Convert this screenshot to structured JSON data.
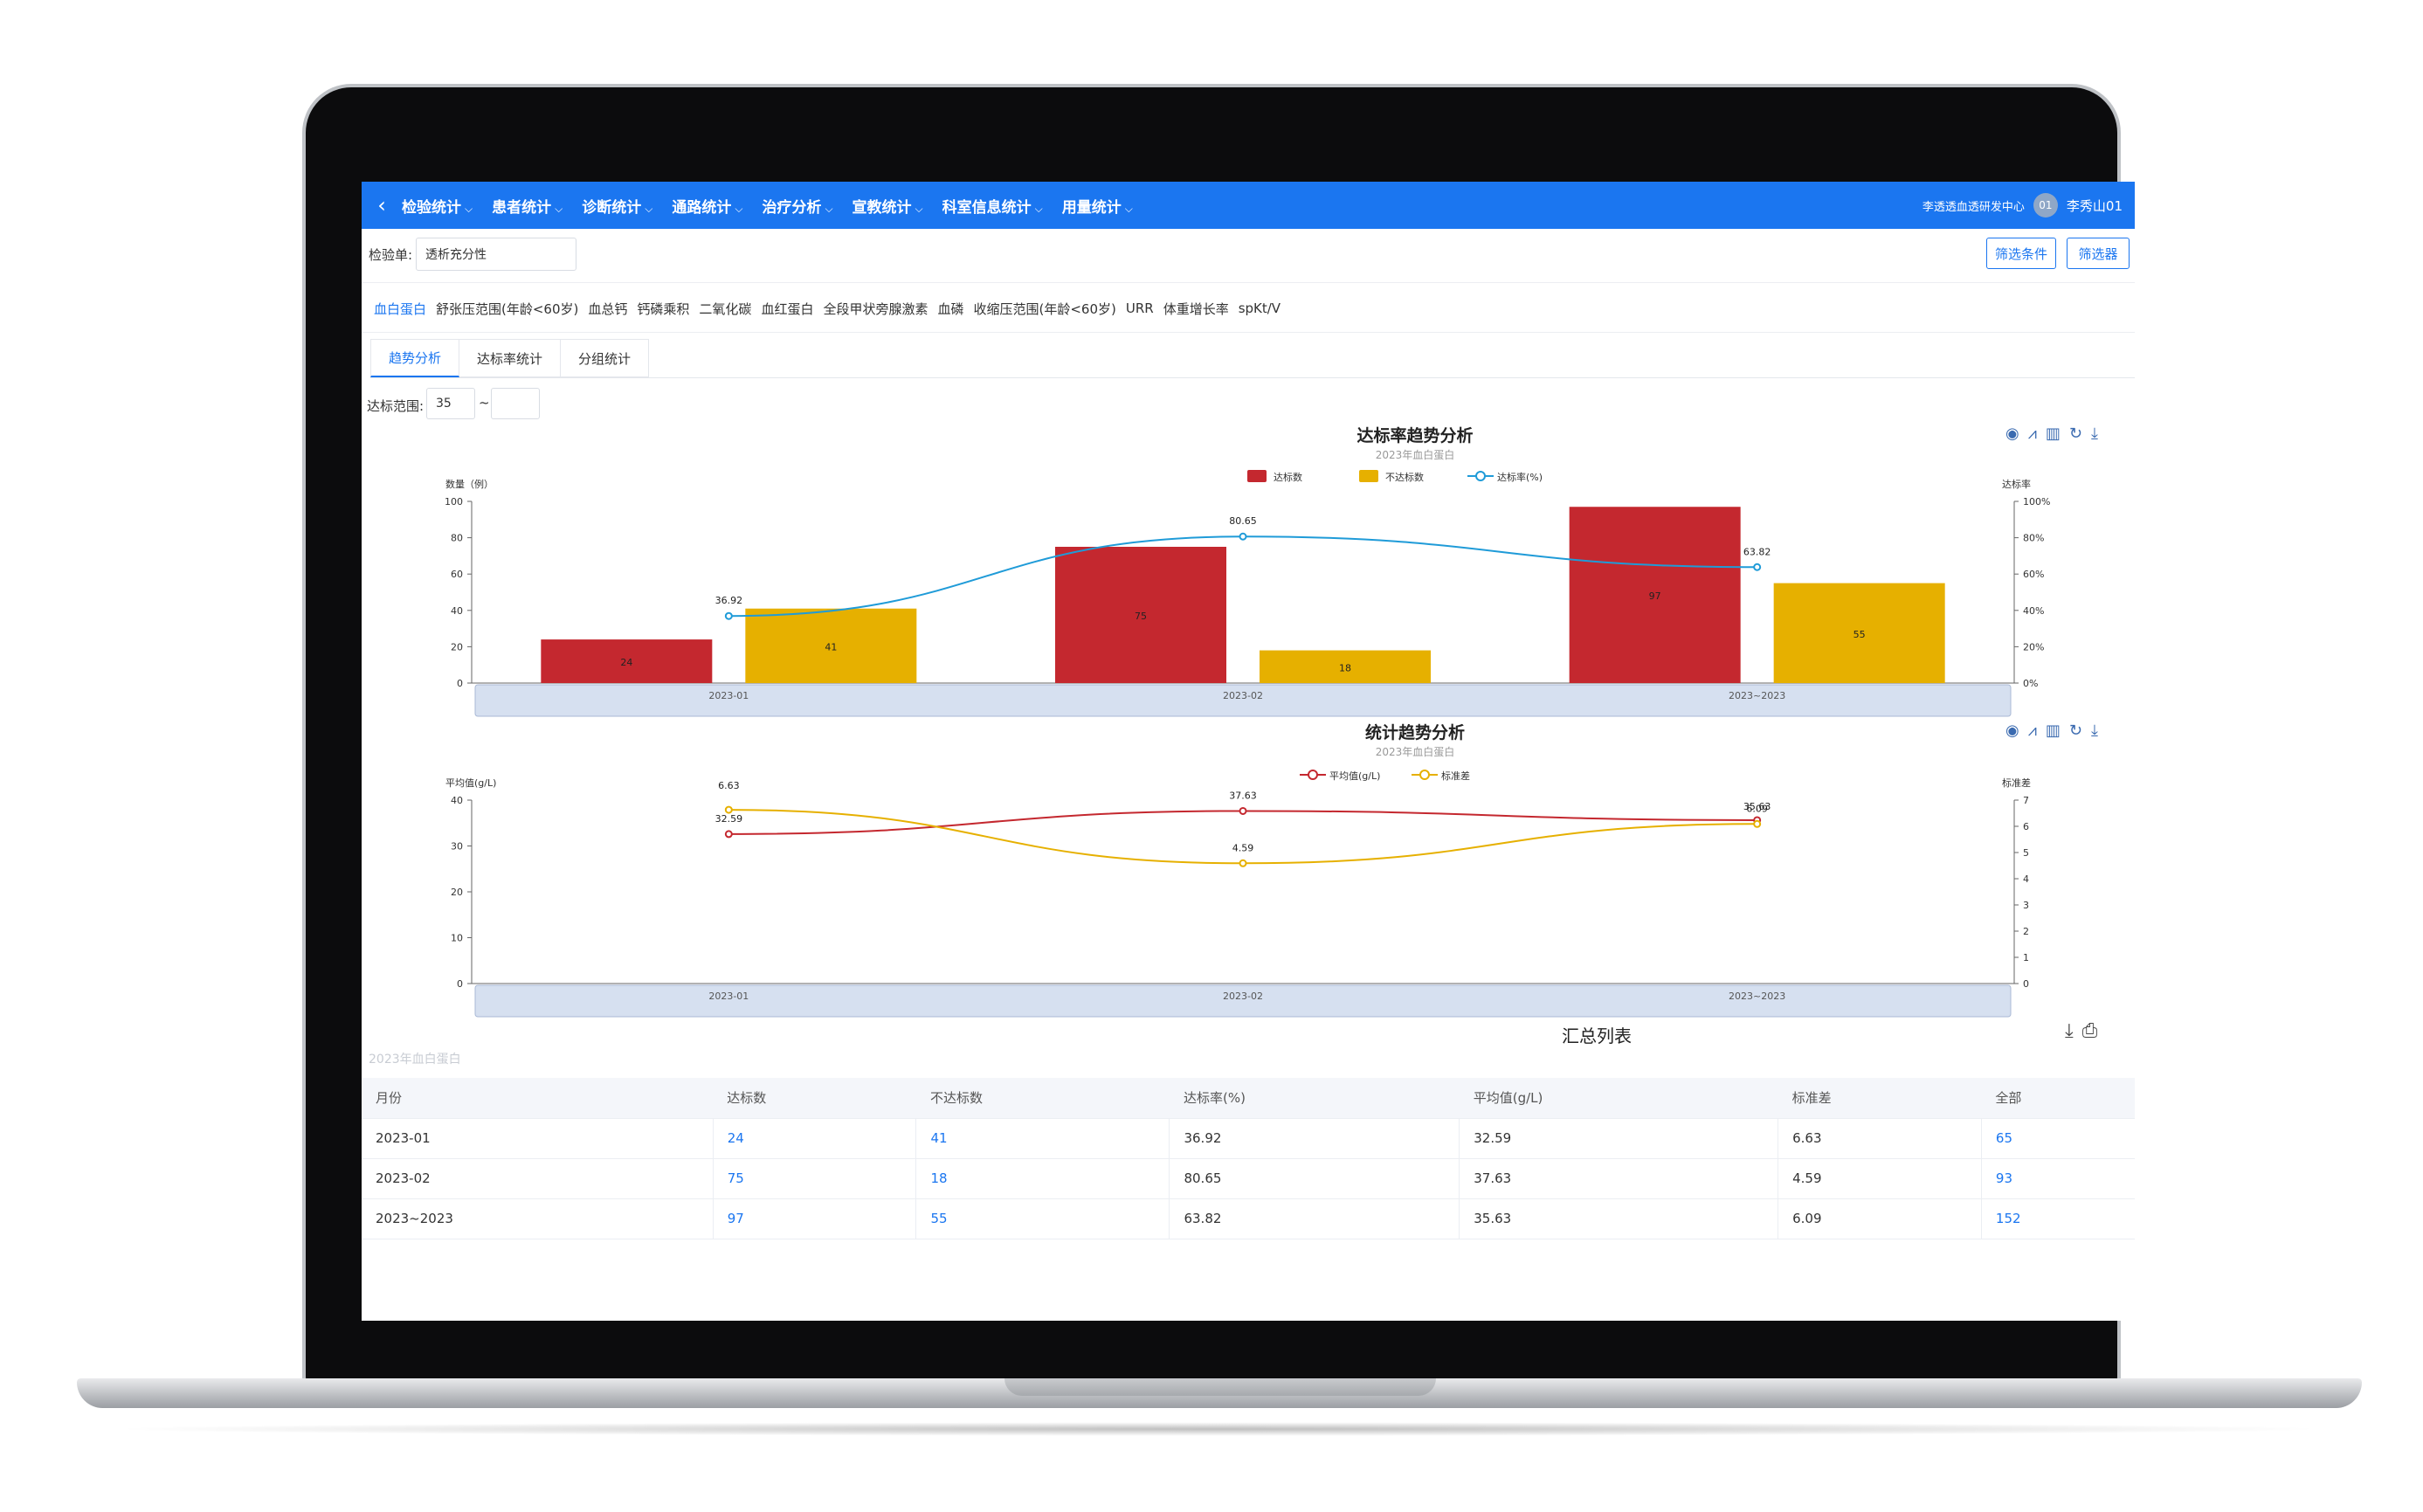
{
  "nav": {
    "items": [
      "检验统计",
      "患者统计",
      "诊断统计",
      "通路统计",
      "治疗分析",
      "宣教统计",
      "科室信息统计",
      "用量统计"
    ],
    "org": "李透透血透研发中心",
    "avatar": "01",
    "user": "李秀山01"
  },
  "filter": {
    "label": "检验单:",
    "value": "透析充分性",
    "btn_conditions": "筛选条件",
    "btn_filter": "筛选器"
  },
  "tests": [
    "血白蛋白",
    "舒张压范围(年龄<60岁)",
    "血总钙",
    "钙磷乘积",
    "二氧化碳",
    "血红蛋白",
    "全段甲状旁腺激素",
    "血磷",
    "收缩压范围(年龄<60岁)",
    "URR",
    "体重增长率",
    "spKt/V"
  ],
  "tabs": [
    "趋势分析",
    "达标率统计",
    "分组统计"
  ],
  "range": {
    "label": "达标范围:",
    "min": "35",
    "sep": "~",
    "max": ""
  },
  "chart_data": [
    {
      "type": "bar",
      "title": "达标率趋势分析",
      "subtitle": "2023年血白蛋白",
      "categories": [
        "2023-01",
        "2023-02",
        "2023~2023"
      ],
      "series": [
        {
          "name": "达标数",
          "type": "bar",
          "values": [
            24,
            75,
            97
          ],
          "color": "#c4282f"
        },
        {
          "name": "不达标数",
          "type": "bar",
          "values": [
            41,
            18,
            55
          ],
          "color": "#e6b000"
        },
        {
          "name": "达标率(%)",
          "type": "line",
          "axis": "right",
          "values": [
            36.92,
            80.65,
            63.82
          ],
          "color": "#1f9bd8"
        }
      ],
      "ylabel": "数量（例）",
      "ylabel_right": "达标率",
      "ylim": [
        0,
        100
      ],
      "yticks": [
        0,
        20,
        40,
        60,
        80,
        100
      ],
      "ylim_right": [
        0,
        100
      ],
      "yticks_right": [
        "0%",
        "20%",
        "40%",
        "60%",
        "80%",
        "100%"
      ],
      "legend": "top-center",
      "grid": false
    },
    {
      "type": "line",
      "title": "统计趋势分析",
      "subtitle": "2023年血白蛋白",
      "categories": [
        "2023-01",
        "2023-02",
        "2023~2023"
      ],
      "series": [
        {
          "name": "平均值(g/L)",
          "values": [
            32.59,
            37.63,
            35.63
          ],
          "color": "#c4282f"
        },
        {
          "name": "标准差",
          "axis": "right",
          "values": [
            6.63,
            4.59,
            6.09
          ],
          "color": "#e6b000"
        }
      ],
      "ylabel": "平均值(g/L)",
      "ylabel_right": "标准差",
      "ylim": [
        0,
        40
      ],
      "yticks": [
        0,
        10,
        20,
        30,
        40
      ],
      "ylim_right": [
        0,
        7
      ],
      "yticks_right": [
        0,
        1,
        2,
        3,
        4,
        5,
        6,
        7
      ],
      "legend": "top-center",
      "grid": false
    }
  ],
  "table": {
    "title": "汇总列表",
    "subtitle": "2023年血白蛋白",
    "headers": [
      "月份",
      "达标数",
      "不达标数",
      "达标率(%)",
      "平均值(g/L)",
      "标准差",
      "全部"
    ],
    "rows": [
      [
        "2023-01",
        "24",
        "41",
        "36.92",
        "32.59",
        "6.63",
        "65"
      ],
      [
        "2023-02",
        "75",
        "18",
        "80.65",
        "37.63",
        "4.59",
        "93"
      ],
      [
        "2023~2023",
        "97",
        "55",
        "63.82",
        "35.63",
        "6.09",
        "152"
      ]
    ]
  },
  "colors": {
    "primary": "#1b76f0",
    "red": "#c4282f",
    "yellow": "#e6b000",
    "blue_line": "#1f9bd8"
  }
}
